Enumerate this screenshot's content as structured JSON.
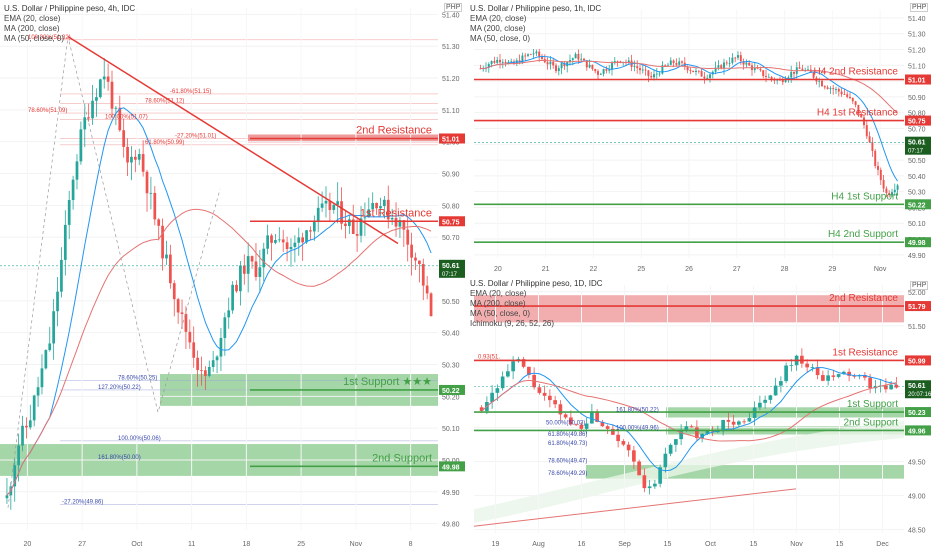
{
  "charts": {
    "left": {
      "title": "U.S. Dollar / Philippine peso, 4h, IDC",
      "indicators": [
        "EMA (20, close)",
        "MA (200, close)",
        "MA (50, close, 0)"
      ],
      "currency": "PHP",
      "price_now": "50.61",
      "countdown": "07:17",
      "y_ticks": [
        "51.40",
        "51.30",
        "51.20",
        "51.10",
        "51.00",
        "50.90",
        "50.80",
        "50.70",
        "50.60",
        "50.50",
        "50.40",
        "50.30",
        "50.20",
        "50.10",
        "50.00",
        "49.90",
        "49.80"
      ],
      "x_ticks": [
        "20",
        "27",
        "Oct",
        "11",
        "18",
        "25",
        "Nov",
        "8"
      ],
      "levels": [
        {
          "name": "2nd Resistance",
          "value": "51.01",
          "color": "#e53935"
        },
        {
          "name": "1st Resistance",
          "value": "50.75",
          "color": "#e53935"
        },
        {
          "name": "1st Support ★★★",
          "value": "50.22",
          "color": "#43a047"
        },
        {
          "name": "2nd Support",
          "value": "49.98",
          "color": "#43a047"
        }
      ],
      "fib_labels": [
        "100.00%(51.32)",
        "-61.80%(51.15)",
        "78.60%(51.12)",
        "78.60%(51.09)",
        "100.00%(51.07)",
        "-27.20%(51.01)",
        "61.80%(50.99)",
        "78.60%(50.25)",
        "127.20%(50.22)",
        "100.00%(50.06)",
        "161.80%(50.00)",
        "-27.20%(49.86)"
      ]
    },
    "right_top": {
      "title": "U.S. Dollar / Philippine peso, 1h, IDC",
      "indicators": [
        "EMA (20, close)",
        "MA (200, close)",
        "MA (50, close, 0)"
      ],
      "currency": "PHP",
      "price_now": "50.61",
      "countdown": "07:17",
      "y_ticks": [
        "51.40",
        "51.30",
        "51.20",
        "51.10",
        "51.00",
        "50.90",
        "50.80",
        "50.70",
        "50.60",
        "50.50",
        "50.40",
        "50.30",
        "50.20",
        "50.10",
        "50.00",
        "49.90"
      ],
      "x_ticks": [
        "20",
        "21",
        "22",
        "25",
        "26",
        "27",
        "28",
        "29",
        "Nov"
      ],
      "levels": [
        {
          "name": "H4 2nd Resistance",
          "value": "51.01",
          "color": "#e53935"
        },
        {
          "name": "H4 1st Resistance",
          "value": "50.75",
          "color": "#e53935"
        },
        {
          "name": "H4 1st Support",
          "value": "50.22",
          "color": "#43a047"
        },
        {
          "name": "H4 2nd Support",
          "value": "49.98",
          "color": "#43a047"
        }
      ]
    },
    "right_bottom": {
      "title": "U.S. Dollar / Philippine peso, 1D, IDC",
      "indicators": [
        "EMA (20, close)",
        "MA (200, close)",
        "MA (50, close, 0)",
        "Ichimoku (9, 26, 52, 26)"
      ],
      "currency": "PHP",
      "price_now": "50.61",
      "countdown": "20:07:16",
      "y_ticks": [
        "52.00",
        "51.50",
        "51.00",
        "50.50",
        "50.00",
        "49.50",
        "49.00",
        "48.50"
      ],
      "x_ticks": [
        "19",
        "Aug",
        "16",
        "Sep",
        "15",
        "Oct",
        "15",
        "Nov",
        "15",
        "Dec"
      ],
      "levels": [
        {
          "name": "2nd Resistance",
          "value": "51.79",
          "color": "#e53935"
        },
        {
          "name": "1st Resistance",
          "value": "50.99",
          "color": "#e53935"
        },
        {
          "name": "1st Support",
          "value": "50.23",
          "color": "#43a047"
        },
        {
          "name": "2nd Support",
          "value": "49.96",
          "color": "#43a047"
        }
      ],
      "fib_labels": [
        "0.93(51.",
        "161.80%(50.22)",
        "50.00%(50.03)",
        "100.00%(49.96)",
        "61.80%(49.86)",
        "61.80%(49.73)",
        "78.60%(49.47)",
        "78.60%(49.29)"
      ]
    }
  },
  "chart_data": [
    {
      "type": "candlestick",
      "title": "U.S. Dollar / Philippine peso, 4h, IDC",
      "ylim": [
        49.78,
        51.42
      ],
      "close_path": [
        49.88,
        50.05,
        50.12,
        50.25,
        50.38,
        50.62,
        50.88,
        51.05,
        51.15,
        51.22,
        51.08,
        50.92,
        50.98,
        50.85,
        50.7,
        50.58,
        50.45,
        50.36,
        50.25,
        50.3,
        50.45,
        50.55,
        50.62,
        50.6,
        50.68,
        50.72,
        50.65,
        50.7,
        50.75,
        50.78,
        50.8,
        50.76,
        50.72,
        50.79,
        50.82,
        50.78,
        50.75,
        50.68,
        50.6,
        50.45
      ],
      "levels": [
        51.01,
        50.75,
        50.22,
        49.98
      ]
    },
    {
      "type": "candlestick",
      "title": "U.S. Dollar / Philippine peso, 1h, IDC",
      "ylim": [
        49.88,
        51.45
      ],
      "close_path": [
        51.08,
        51.12,
        51.14,
        51.1,
        51.15,
        51.18,
        51.13,
        51.08,
        51.12,
        51.16,
        51.1,
        51.05,
        51.09,
        51.14,
        51.11,
        51.07,
        51.02,
        51.08,
        51.12,
        51.1,
        51.06,
        51.03,
        51.07,
        51.12,
        51.15,
        51.1,
        51.06,
        51.02,
        51.0,
        51.05,
        51.08,
        51.04,
        50.98,
        50.95,
        50.92,
        50.85,
        50.7,
        50.45,
        50.28,
        50.35
      ],
      "levels": [
        51.01,
        50.75,
        50.22,
        49.98
      ]
    },
    {
      "type": "candlestick",
      "title": "U.S. Dollar / Philippine peso, 1D, IDC",
      "ylim": [
        48.45,
        52.1
      ],
      "close_path": [
        50.3,
        50.55,
        50.8,
        51.0,
        50.7,
        50.45,
        50.3,
        50.1,
        50.0,
        50.2,
        50.05,
        49.9,
        49.7,
        49.2,
        49.05,
        49.6,
        49.9,
        50.0,
        49.85,
        49.95,
        50.1,
        50.05,
        50.2,
        50.35,
        50.55,
        50.9,
        51.05,
        50.85,
        50.7,
        50.75,
        50.8,
        50.72,
        50.62,
        50.55,
        50.61
      ],
      "levels": [
        51.79,
        50.99,
        50.23,
        49.96
      ]
    }
  ]
}
